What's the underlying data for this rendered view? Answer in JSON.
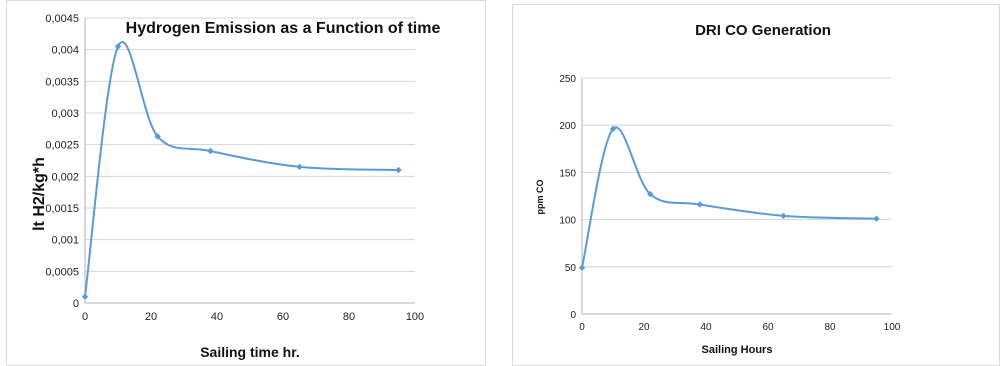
{
  "chart_data": [
    {
      "type": "line",
      "title": "Hydrogen Emission as a Function of time",
      "xlabel": "Sailing time hr.",
      "ylabel": "lt H2/kg*h",
      "xlim": [
        0,
        100
      ],
      "ylim": [
        0,
        0.0045
      ],
      "x_ticks": [
        "0",
        "20",
        "40",
        "60",
        "80",
        "100"
      ],
      "y_ticks": [
        "0",
        "0,0005",
        "0,001",
        "0,0015",
        "0,002",
        "0,0025",
        "0,003",
        "0,0035",
        "0,004",
        "0,0045"
      ],
      "grid": true,
      "line_color": "#5b9bd5",
      "series": [
        {
          "x": [
            0,
            10,
            22,
            38,
            65,
            95
          ],
          "y": [
            0.0001,
            0.00405,
            0.00263,
            0.0024,
            0.00215,
            0.0021
          ]
        }
      ]
    },
    {
      "type": "line",
      "title": "DRI CO Generation",
      "xlabel": "Sailing Hours",
      "ylabel": "ppm CO",
      "xlim": [
        0,
        100
      ],
      "ylim": [
        0,
        250
      ],
      "x_ticks": [
        "0",
        "20",
        "40",
        "60",
        "80",
        "100"
      ],
      "y_ticks": [
        "0",
        "50",
        "100",
        "150",
        "200",
        "250"
      ],
      "grid": true,
      "line_color": "#5b9bd5",
      "series": [
        {
          "x": [
            0,
            10,
            22,
            38,
            65,
            95
          ],
          "y": [
            49,
            196,
            127,
            116,
            104,
            101
          ]
        }
      ]
    }
  ]
}
